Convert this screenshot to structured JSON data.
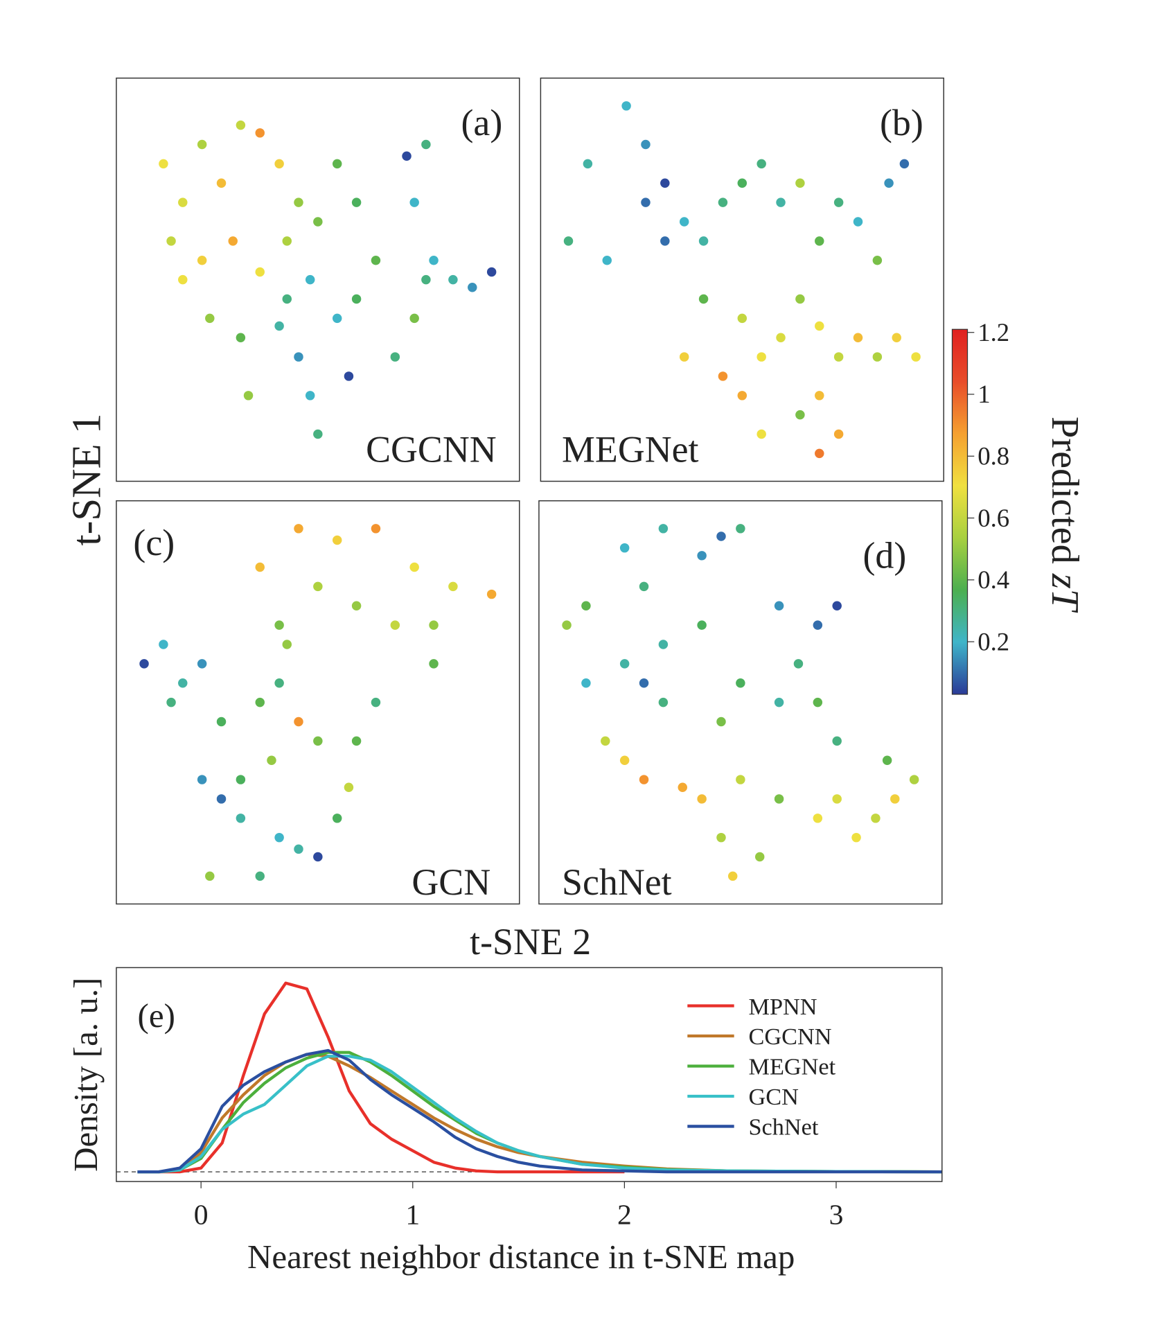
{
  "figure": {
    "ylabel": "t-SNE 1",
    "xlabel": "t-SNE 2",
    "colorbar": {
      "label": "Predicted ",
      "label_italic": "zT",
      "clim": [
        0.03,
        1.21
      ],
      "ticks": [
        0.2,
        0.4,
        0.6,
        0.8,
        1.0,
        1.2
      ],
      "colormap": [
        "#2b3a97",
        "#3fb5c9",
        "#4caf50",
        "#a8d040",
        "#f0e040",
        "#f5a030",
        "#e84d2a",
        "#e02020"
      ]
    }
  },
  "chart_data": [
    {
      "type": "scatter",
      "panel_label": "(a)",
      "annotation": "CGCNN",
      "xlim": [
        0,
        100
      ],
      "ylim": [
        0,
        100
      ],
      "x": [
        10,
        15,
        20,
        25,
        30,
        35,
        40,
        45,
        12,
        20,
        28,
        35,
        42,
        50,
        22,
        30,
        40,
        45,
        48,
        50,
        42,
        55,
        60,
        65,
        70,
        75,
        78,
        80,
        85,
        90,
        95,
        75,
        78,
        73,
        60,
        48,
        58,
        32,
        15,
        55
      ],
      "y": [
        80,
        70,
        85,
        75,
        90,
        88,
        80,
        70,
        60,
        55,
        60,
        52,
        60,
        65,
        40,
        35,
        38,
        30,
        20,
        10,
        45,
        40,
        45,
        55,
        30,
        40,
        50,
        55,
        50,
        48,
        52,
        70,
        85,
        82,
        70,
        50,
        25,
        20,
        50,
        80
      ],
      "values": [
        0.7,
        0.65,
        0.55,
        0.8,
        0.6,
        0.9,
        0.75,
        0.5,
        0.6,
        0.75,
        0.85,
        0.7,
        0.55,
        0.45,
        0.5,
        0.4,
        0.25,
        0.15,
        0.2,
        0.3,
        0.3,
        0.2,
        0.35,
        0.4,
        0.3,
        0.45,
        0.3,
        0.2,
        0.25,
        0.15,
        0.05,
        0.2,
        0.3,
        0.05,
        0.35,
        0.2,
        0.05,
        0.5,
        0.7,
        0.4
      ]
    },
    {
      "type": "scatter",
      "panel_label": "(b)",
      "annotation": "MEGNet",
      "xlim": [
        0,
        100
      ],
      "ylim": [
        0,
        100
      ],
      "x": [
        10,
        5,
        15,
        20,
        25,
        25,
        30,
        35,
        40,
        45,
        50,
        55,
        60,
        65,
        70,
        75,
        80,
        88,
        92,
        85,
        30,
        40,
        50,
        35,
        45,
        50,
        55,
        60,
        65,
        70,
        75,
        80,
        85,
        90,
        95,
        70,
        75,
        70,
        65,
        55
      ],
      "y": [
        80,
        60,
        55,
        95,
        85,
        70,
        75,
        65,
        60,
        70,
        75,
        80,
        70,
        75,
        60,
        70,
        65,
        75,
        80,
        55,
        60,
        45,
        40,
        30,
        25,
        20,
        30,
        35,
        45,
        38,
        30,
        35,
        30,
        35,
        30,
        20,
        10,
        5,
        15,
        10
      ],
      "values": [
        0.25,
        0.3,
        0.2,
        0.2,
        0.15,
        0.1,
        0.05,
        0.2,
        0.25,
        0.3,
        0.35,
        0.3,
        0.25,
        0.55,
        0.4,
        0.3,
        0.2,
        0.15,
        0.1,
        0.45,
        0.1,
        0.4,
        0.6,
        0.75,
        0.9,
        0.85,
        0.7,
        0.65,
        0.5,
        0.7,
        0.6,
        0.8,
        0.55,
        0.75,
        0.7,
        0.8,
        0.85,
        0.95,
        0.45,
        0.7
      ]
    },
    {
      "type": "scatter",
      "panel_label": "(c)",
      "annotation": "GCN",
      "xlim": [
        0,
        100
      ],
      "ylim": [
        0,
        100
      ],
      "x": [
        35,
        45,
        55,
        65,
        75,
        85,
        95,
        60,
        50,
        40,
        70,
        80,
        5,
        10,
        15,
        20,
        12,
        25,
        35,
        40,
        45,
        50,
        30,
        38,
        20,
        25,
        30,
        40,
        45,
        50,
        35,
        55,
        60,
        65,
        58,
        22,
        80,
        42
      ],
      "y": [
        85,
        95,
        92,
        95,
        85,
        80,
        78,
        75,
        80,
        70,
        70,
        70,
        60,
        65,
        55,
        60,
        50,
        45,
        50,
        55,
        45,
        40,
        30,
        35,
        30,
        25,
        20,
        15,
        12,
        10,
        5,
        20,
        40,
        50,
        28,
        5,
        60,
        65
      ],
      "values": [
        0.8,
        0.85,
        0.75,
        0.9,
        0.7,
        0.65,
        0.85,
        0.5,
        0.55,
        0.45,
        0.6,
        0.5,
        0.05,
        0.2,
        0.25,
        0.15,
        0.3,
        0.35,
        0.4,
        0.3,
        0.9,
        0.45,
        0.35,
        0.5,
        0.15,
        0.1,
        0.25,
        0.2,
        0.25,
        0.05,
        0.3,
        0.35,
        0.4,
        0.3,
        0.6,
        0.5,
        0.4,
        0.5
      ]
    },
    {
      "type": "scatter",
      "panel_label": "(d)",
      "annotation": "SchNet",
      "xlim": [
        0,
        100
      ],
      "ylim": [
        0,
        100
      ],
      "x": [
        20,
        30,
        40,
        45,
        50,
        10,
        5,
        25,
        30,
        25,
        20,
        30,
        60,
        70,
        75,
        65,
        70,
        60,
        50,
        45,
        15,
        20,
        25,
        35,
        40,
        50,
        45,
        55,
        48,
        60,
        70,
        75,
        80,
        85,
        90,
        95,
        88,
        75,
        10,
        40
      ],
      "y": [
        90,
        95,
        88,
        93,
        95,
        75,
        70,
        80,
        65,
        55,
        60,
        50,
        75,
        70,
        75,
        60,
        50,
        50,
        55,
        45,
        40,
        35,
        30,
        28,
        25,
        30,
        15,
        10,
        5,
        25,
        20,
        25,
        15,
        20,
        25,
        30,
        35,
        40,
        55,
        70
      ],
      "values": [
        0.2,
        0.25,
        0.15,
        0.1,
        0.3,
        0.4,
        0.5,
        0.3,
        0.25,
        0.1,
        0.25,
        0.3,
        0.15,
        0.1,
        0.05,
        0.3,
        0.4,
        0.25,
        0.35,
        0.45,
        0.6,
        0.75,
        0.9,
        0.85,
        0.8,
        0.6,
        0.55,
        0.5,
        0.75,
        0.45,
        0.7,
        0.65,
        0.7,
        0.6,
        0.75,
        0.55,
        0.4,
        0.3,
        0.2,
        0.35
      ]
    },
    {
      "type": "line",
      "panel_label": "(e)",
      "ylabel": "Density [a. u.]",
      "xlabel": "Nearest neighbor distance in t-SNE map",
      "xlim": [
        -0.4,
        3.5
      ],
      "ylim": [
        -0.05,
        1.06
      ],
      "xticks": [
        0,
        1,
        2,
        3
      ],
      "x": [
        -0.4,
        -0.3,
        -0.2,
        -0.1,
        0,
        0.1,
        0.2,
        0.3,
        0.4,
        0.5,
        0.6,
        0.7,
        0.8,
        0.9,
        1.0,
        1.1,
        1.2,
        1.3,
        1.4,
        1.5,
        1.6,
        1.8,
        2.0,
        2.2,
        2.5,
        3.0,
        3.5
      ],
      "series": [
        {
          "name": "MPNN",
          "color": "#e8302a",
          "values": [
            null,
            null,
            0,
            0,
            0.02,
            0.15,
            0.5,
            0.82,
            0.98,
            0.95,
            0.7,
            0.42,
            0.25,
            0.17,
            0.11,
            0.05,
            0.02,
            0.005,
            0,
            0,
            0,
            0,
            0,
            null,
            null,
            null,
            null
          ]
        },
        {
          "name": "CGCNN",
          "color": "#c0782a",
          "values": [
            null,
            0,
            0,
            0.01,
            0.1,
            0.28,
            0.4,
            0.5,
            0.57,
            0.61,
            0.6,
            0.55,
            0.49,
            0.42,
            0.35,
            0.28,
            0.22,
            0.17,
            0.13,
            0.1,
            0.08,
            0.05,
            0.03,
            0.015,
            0.005,
            0.002,
            0
          ]
        },
        {
          "name": "MEGNet",
          "color": "#4caf3c",
          "values": [
            null,
            0,
            0,
            0.01,
            0.07,
            0.22,
            0.36,
            0.46,
            0.54,
            0.59,
            0.62,
            0.62,
            0.57,
            0.5,
            0.42,
            0.34,
            0.27,
            0.2,
            0.15,
            0.11,
            0.08,
            0.04,
            0.025,
            0.012,
            0.005,
            0.002,
            0
          ]
        },
        {
          "name": "GCN",
          "color": "#38c0c8",
          "values": [
            null,
            0,
            0,
            0.01,
            0.08,
            0.22,
            0.3,
            0.35,
            0.45,
            0.55,
            0.6,
            0.6,
            0.58,
            0.52,
            0.44,
            0.36,
            0.28,
            0.21,
            0.15,
            0.11,
            0.08,
            0.04,
            0.02,
            0.01,
            0.005,
            0.002,
            0
          ]
        },
        {
          "name": "SchNet",
          "color": "#2a4fa0",
          "values": [
            null,
            0,
            0,
            0.02,
            0.12,
            0.34,
            0.45,
            0.52,
            0.57,
            0.61,
            0.63,
            0.58,
            0.48,
            0.4,
            0.33,
            0.26,
            0.18,
            0.12,
            0.08,
            0.05,
            0.03,
            0.01,
            0.005,
            0,
            0,
            0,
            0
          ]
        }
      ]
    }
  ]
}
